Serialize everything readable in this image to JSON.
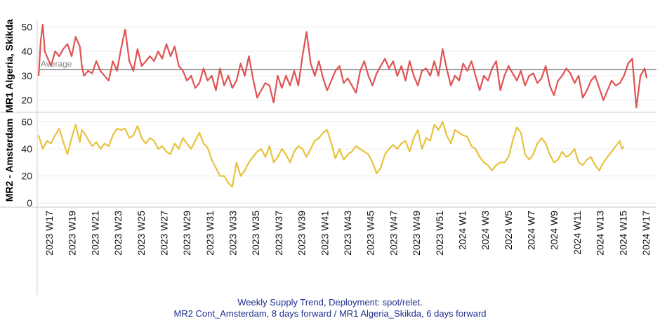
{
  "caption": {
    "line1": "Weekly Supply Trend, Deployment: spot/relet.",
    "line2": "MR2 Cont_Amsterdam, 8 days forward / MR1 Algeria_Skikda, 6 days forward"
  },
  "chart_data": [
    {
      "type": "line",
      "ylabel": "MR1 Algeria, Skikda",
      "ylim": [
        15,
        53
      ],
      "yticks": [
        20,
        30,
        40,
        50
      ],
      "color": "#e05252",
      "reference_line": {
        "label": "Average",
        "value": 32.5,
        "color": "#808080"
      },
      "control_points": [
        [
          0,
          30
        ],
        [
          1,
          44
        ],
        [
          2,
          51
        ],
        [
          3,
          40
        ],
        [
          4,
          38
        ],
        [
          6,
          34
        ],
        [
          8,
          40
        ],
        [
          10,
          38
        ],
        [
          12,
          41
        ],
        [
          14,
          43
        ],
        [
          16,
          38
        ],
        [
          18,
          46
        ],
        [
          20,
          42
        ],
        [
          21,
          34
        ],
        [
          22,
          30
        ],
        [
          24,
          32
        ],
        [
          26,
          31
        ],
        [
          28,
          36
        ],
        [
          30,
          32
        ],
        [
          32,
          30
        ],
        [
          34,
          28
        ],
        [
          36,
          36
        ],
        [
          38,
          32
        ],
        [
          40,
          41
        ],
        [
          42,
          49
        ],
        [
          44,
          36
        ],
        [
          46,
          32
        ],
        [
          48,
          41
        ],
        [
          50,
          34
        ],
        [
          52,
          36
        ],
        [
          54,
          38
        ],
        [
          56,
          36
        ],
        [
          58,
          40
        ],
        [
          60,
          37
        ],
        [
          62,
          43
        ],
        [
          64,
          38
        ],
        [
          66,
          42
        ],
        [
          68,
          34
        ],
        [
          70,
          32
        ],
        [
          72,
          28
        ],
        [
          74,
          30
        ],
        [
          76,
          25
        ],
        [
          78,
          27
        ],
        [
          80,
          33
        ],
        [
          82,
          28
        ],
        [
          84,
          30
        ],
        [
          86,
          24
        ],
        [
          88,
          33
        ],
        [
          90,
          26
        ],
        [
          92,
          30
        ],
        [
          94,
          25
        ],
        [
          96,
          28
        ],
        [
          98,
          35
        ],
        [
          100,
          30
        ],
        [
          102,
          38
        ],
        [
          104,
          29
        ],
        [
          106,
          21
        ],
        [
          108,
          24
        ],
        [
          110,
          27
        ],
        [
          112,
          26
        ],
        [
          114,
          19
        ],
        [
          116,
          30
        ],
        [
          118,
          25
        ],
        [
          120,
          30
        ],
        [
          122,
          26
        ],
        [
          124,
          32
        ],
        [
          126,
          26
        ],
        [
          128,
          38
        ],
        [
          130,
          48
        ],
        [
          132,
          35
        ],
        [
          134,
          30
        ],
        [
          136,
          36
        ],
        [
          138,
          29
        ],
        [
          140,
          24
        ],
        [
          142,
          28
        ],
        [
          144,
          32
        ],
        [
          146,
          34
        ],
        [
          148,
          27
        ],
        [
          150,
          29
        ],
        [
          152,
          26
        ],
        [
          154,
          23
        ],
        [
          156,
          32
        ],
        [
          158,
          36
        ],
        [
          160,
          30
        ],
        [
          162,
          26
        ],
        [
          164,
          31
        ],
        [
          166,
          34
        ],
        [
          168,
          37
        ],
        [
          170,
          33
        ],
        [
          172,
          36
        ],
        [
          174,
          30
        ],
        [
          176,
          34
        ],
        [
          178,
          28
        ],
        [
          180,
          36
        ],
        [
          182,
          30
        ],
        [
          184,
          26
        ],
        [
          186,
          32
        ],
        [
          188,
          33
        ],
        [
          190,
          30
        ],
        [
          192,
          36
        ],
        [
          194,
          30
        ],
        [
          196,
          41
        ],
        [
          198,
          33
        ],
        [
          200,
          26
        ],
        [
          202,
          30
        ],
        [
          204,
          28
        ],
        [
          206,
          35
        ],
        [
          208,
          32
        ],
        [
          210,
          36
        ],
        [
          212,
          30
        ],
        [
          214,
          24
        ],
        [
          216,
          30
        ],
        [
          218,
          28
        ],
        [
          220,
          33
        ],
        [
          222,
          36
        ],
        [
          224,
          24
        ],
        [
          226,
          30
        ],
        [
          228,
          34
        ],
        [
          230,
          31
        ],
        [
          232,
          28
        ],
        [
          234,
          32
        ],
        [
          236,
          26
        ],
        [
          238,
          30
        ],
        [
          240,
          31
        ],
        [
          242,
          27
        ],
        [
          244,
          29
        ],
        [
          246,
          34
        ],
        [
          248,
          26
        ],
        [
          250,
          22
        ],
        [
          252,
          28
        ],
        [
          254,
          30
        ],
        [
          256,
          33
        ],
        [
          258,
          31
        ],
        [
          260,
          27
        ],
        [
          262,
          30
        ],
        [
          264,
          21
        ],
        [
          266,
          24
        ],
        [
          268,
          28
        ],
        [
          270,
          30
        ],
        [
          272,
          25
        ],
        [
          274,
          20
        ],
        [
          276,
          24
        ],
        [
          278,
          28
        ],
        [
          280,
          26
        ],
        [
          282,
          27
        ],
        [
          284,
          30
        ],
        [
          286,
          35
        ],
        [
          288,
          37
        ],
        [
          290,
          17
        ],
        [
          292,
          30
        ],
        [
          294,
          33
        ],
        [
          295,
          29
        ]
      ]
    },
    {
      "type": "line",
      "ylabel": "MR2 - Amsterdam",
      "ylim": [
        -3,
        67
      ],
      "yticks": [
        0,
        20,
        40,
        60
      ],
      "color": "#e8c23e",
      "control_points": [
        [
          0,
          50
        ],
        [
          2,
          40
        ],
        [
          4,
          46
        ],
        [
          6,
          44
        ],
        [
          8,
          50
        ],
        [
          10,
          55
        ],
        [
          12,
          45
        ],
        [
          14,
          36
        ],
        [
          16,
          48
        ],
        [
          18,
          58
        ],
        [
          20,
          45
        ],
        [
          21,
          54
        ],
        [
          22,
          52
        ],
        [
          24,
          47
        ],
        [
          26,
          42
        ],
        [
          28,
          45
        ],
        [
          30,
          40
        ],
        [
          32,
          44
        ],
        [
          34,
          42
        ],
        [
          36,
          50
        ],
        [
          38,
          55
        ],
        [
          40,
          54
        ],
        [
          42,
          55
        ],
        [
          44,
          48
        ],
        [
          46,
          50
        ],
        [
          48,
          57
        ],
        [
          50,
          48
        ],
        [
          52,
          44
        ],
        [
          54,
          48
        ],
        [
          56,
          46
        ],
        [
          58,
          40
        ],
        [
          60,
          42
        ],
        [
          62,
          38
        ],
        [
          64,
          36
        ],
        [
          66,
          44
        ],
        [
          68,
          40
        ],
        [
          70,
          48
        ],
        [
          72,
          44
        ],
        [
          74,
          40
        ],
        [
          76,
          46
        ],
        [
          78,
          52
        ],
        [
          80,
          44
        ],
        [
          82,
          41
        ],
        [
          84,
          32
        ],
        [
          86,
          26
        ],
        [
          88,
          20
        ],
        [
          90,
          20
        ],
        [
          92,
          15
        ],
        [
          94,
          12
        ],
        [
          96,
          30
        ],
        [
          98,
          20
        ],
        [
          100,
          24
        ],
        [
          102,
          30
        ],
        [
          104,
          34
        ],
        [
          106,
          38
        ],
        [
          108,
          40
        ],
        [
          110,
          34
        ],
        [
          112,
          42
        ],
        [
          114,
          30
        ],
        [
          116,
          34
        ],
        [
          118,
          40
        ],
        [
          120,
          36
        ],
        [
          122,
          30
        ],
        [
          124,
          38
        ],
        [
          126,
          42
        ],
        [
          128,
          40
        ],
        [
          130,
          34
        ],
        [
          132,
          40
        ],
        [
          134,
          46
        ],
        [
          136,
          48
        ],
        [
          138,
          52
        ],
        [
          140,
          54
        ],
        [
          142,
          44
        ],
        [
          144,
          33
        ],
        [
          146,
          40
        ],
        [
          148,
          32
        ],
        [
          150,
          36
        ],
        [
          152,
          38
        ],
        [
          154,
          42
        ],
        [
          156,
          40
        ],
        [
          158,
          38
        ],
        [
          160,
          36
        ],
        [
          162,
          30
        ],
        [
          164,
          22
        ],
        [
          166,
          26
        ],
        [
          168,
          36
        ],
        [
          170,
          40
        ],
        [
          172,
          43
        ],
        [
          174,
          40
        ],
        [
          176,
          44
        ],
        [
          178,
          46
        ],
        [
          180,
          38
        ],
        [
          182,
          48
        ],
        [
          184,
          54
        ],
        [
          186,
          40
        ],
        [
          188,
          48
        ],
        [
          190,
          46
        ],
        [
          192,
          58
        ],
        [
          194,
          54
        ],
        [
          196,
          60
        ],
        [
          198,
          50
        ],
        [
          200,
          44
        ],
        [
          202,
          54
        ],
        [
          204,
          52
        ],
        [
          206,
          50
        ],
        [
          208,
          49
        ],
        [
          210,
          42
        ],
        [
          212,
          40
        ],
        [
          214,
          34
        ],
        [
          216,
          30
        ],
        [
          218,
          28
        ],
        [
          220,
          24
        ],
        [
          222,
          28
        ],
        [
          224,
          30
        ],
        [
          226,
          30
        ],
        [
          228,
          34
        ],
        [
          230,
          46
        ],
        [
          232,
          56
        ],
        [
          234,
          52
        ],
        [
          236,
          36
        ],
        [
          238,
          32
        ],
        [
          240,
          36
        ],
        [
          242,
          44
        ],
        [
          244,
          48
        ],
        [
          246,
          44
        ],
        [
          248,
          36
        ],
        [
          250,
          30
        ],
        [
          252,
          32
        ],
        [
          254,
          38
        ],
        [
          256,
          34
        ],
        [
          258,
          36
        ],
        [
          260,
          40
        ],
        [
          262,
          30
        ],
        [
          264,
          28
        ],
        [
          266,
          32
        ],
        [
          268,
          34
        ],
        [
          270,
          28
        ],
        [
          272,
          24
        ],
        [
          274,
          30
        ],
        [
          276,
          34
        ],
        [
          278,
          38
        ],
        [
          280,
          42
        ],
        [
          282,
          46
        ],
        [
          283,
          40
        ],
        [
          284,
          42
        ]
      ]
    }
  ],
  "x_axis": {
    "n_points": 296,
    "tick_labels": [
      "2023 W17",
      "2023 W19",
      "2023 W21",
      "2023 W23",
      "2023 W25",
      "2023 W27",
      "2023 W29",
      "2023 W31",
      "2023 W33",
      "2023 W35",
      "2023 W37",
      "2023 W39",
      "2023 W41",
      "2023 W43",
      "2023 W45",
      "2023 W47",
      "2023 W49",
      "2023 W51",
      "2024 W1",
      "2024 W3",
      "2024 W5",
      "2024 W7",
      "2024 W9",
      "2024 W11",
      "2024 W13",
      "2024 W15",
      "2024 W17"
    ]
  }
}
